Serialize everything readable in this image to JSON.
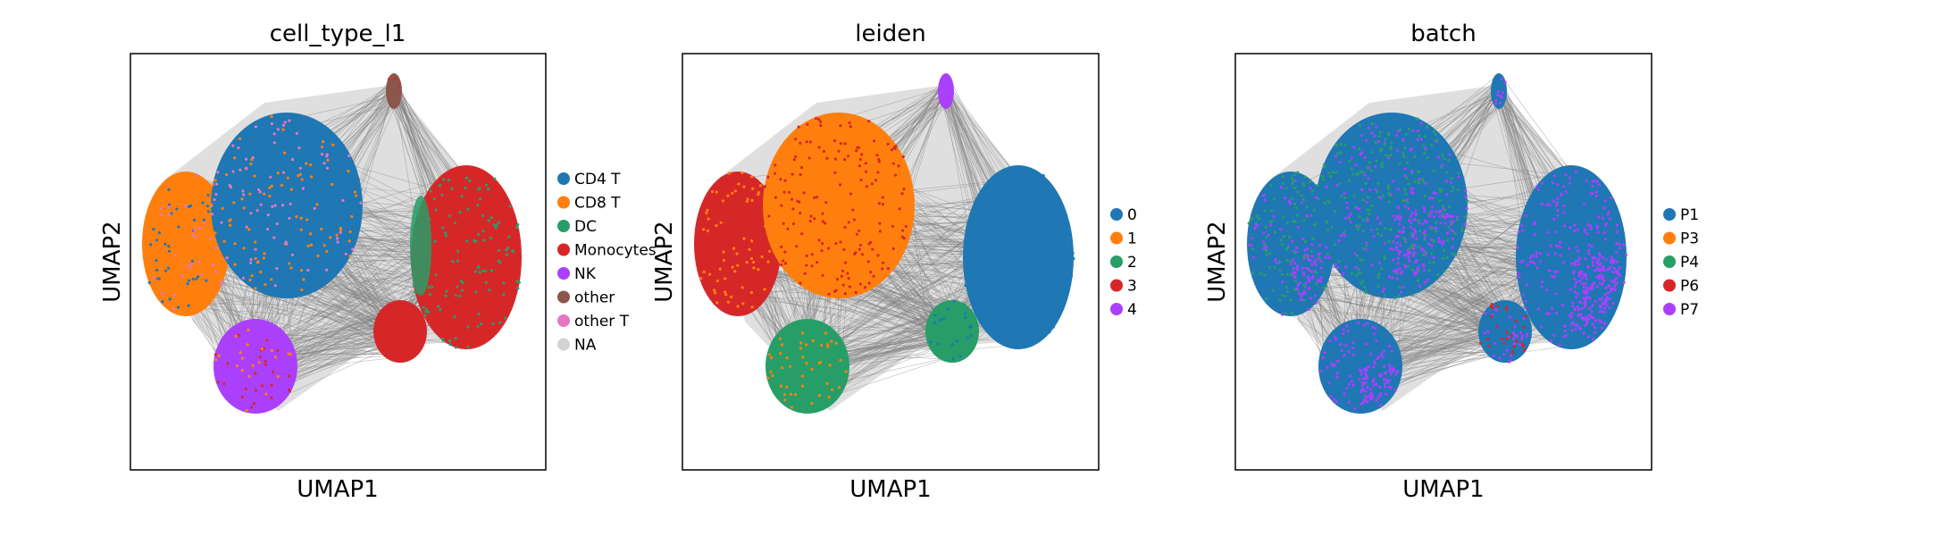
{
  "chart_data": [
    {
      "type": "scatter",
      "title": "cell_type_l1",
      "xlabel": "UMAP1",
      "ylabel": "UMAP2",
      "grid": false,
      "legend_placement": "right",
      "legend": [
        {
          "name": "CD4 T",
          "color": "#1f77b4"
        },
        {
          "name": "CD8 T",
          "color": "#ff7f0e"
        },
        {
          "name": "DC",
          "color": "#279e68"
        },
        {
          "name": "Monocytes",
          "color": "#d62728"
        },
        {
          "name": "NK",
          "color": "#aa40fc"
        },
        {
          "name": "other",
          "color": "#8c564b"
        },
        {
          "name": "other T",
          "color": "#e377c2"
        },
        {
          "name": "NA",
          "color": "#d3d3d3"
        }
      ]
    },
    {
      "type": "scatter",
      "title": "leiden",
      "xlabel": "UMAP1",
      "ylabel": "UMAP2",
      "grid": false,
      "legend_placement": "right",
      "legend": [
        {
          "name": "0",
          "color": "#1f77b4"
        },
        {
          "name": "1",
          "color": "#ff7f0e"
        },
        {
          "name": "2",
          "color": "#279e68"
        },
        {
          "name": "3",
          "color": "#d62728"
        },
        {
          "name": "4",
          "color": "#aa40fc"
        }
      ]
    },
    {
      "type": "scatter",
      "title": "batch",
      "xlabel": "UMAP1",
      "ylabel": "UMAP2",
      "grid": false,
      "legend_placement": "right",
      "legend": [
        {
          "name": "P1",
          "color": "#1f77b4"
        },
        {
          "name": "P3",
          "color": "#ff7f0e"
        },
        {
          "name": "P4",
          "color": "#279e68"
        },
        {
          "name": "P6",
          "color": "#d62728"
        },
        {
          "name": "P7",
          "color": "#aa40fc"
        }
      ]
    }
  ],
  "edge_color": "#808080"
}
